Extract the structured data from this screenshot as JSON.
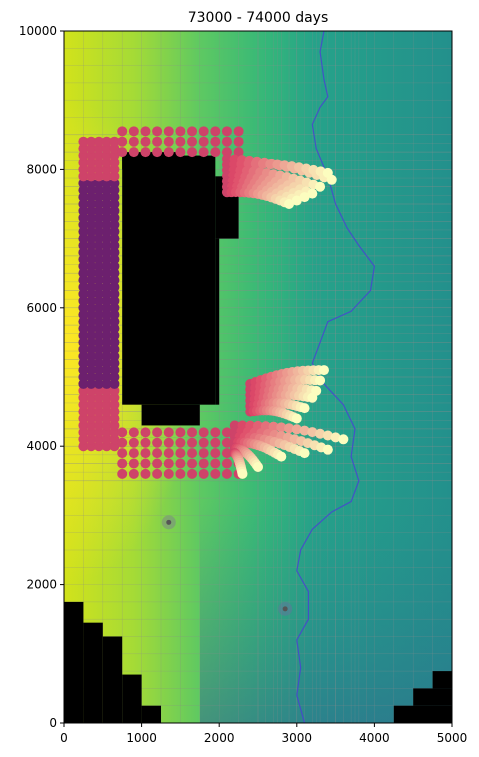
{
  "chart_data": {
    "type": "heatmap",
    "title": "73000 - 74000 days",
    "xlabel": "",
    "ylabel": "",
    "xlim": [
      0,
      5000
    ],
    "ylim": [
      0,
      10000
    ],
    "xticks": [
      0,
      1000,
      2000,
      3000,
      4000,
      5000
    ],
    "yticks": [
      0,
      2000,
      4000,
      6000,
      8000,
      10000
    ],
    "xtick_labels": [
      "0",
      "1000",
      "2000",
      "3000",
      "4000",
      "5000"
    ],
    "ytick_labels": [
      "0",
      "2000",
      "4000",
      "6000",
      "8000",
      "10000"
    ],
    "grid": true,
    "legend": "none",
    "colors": {
      "field_high": "#f1e51d",
      "field_mid": "#5ec962",
      "field_low": "#21918c",
      "field_lowest": "#3b528b",
      "inactive": "#000000",
      "grid_line": "#8c8c8c",
      "river": "#4a3fd6",
      "path_early": "#3b0f70",
      "path_mid": "#de4968",
      "path_late": "#fcfdbf"
    },
    "inactive_cells": [
      [
        750,
        4600,
        1950,
        8200
      ],
      [
        1000,
        4300,
        1750,
        4600
      ],
      [
        1950,
        4600,
        2000,
        7000
      ],
      [
        1950,
        7000,
        2250,
        7900
      ],
      [
        750,
        8000,
        1500,
        8250
      ],
      [
        0,
        0,
        250,
        1750
      ],
      [
        250,
        0,
        500,
        1450
      ],
      [
        500,
        0,
        750,
        1250
      ],
      [
        750,
        0,
        1000,
        700
      ],
      [
        1000,
        0,
        1250,
        250
      ],
      [
        4250,
        0,
        5000,
        250
      ],
      [
        4500,
        250,
        5000,
        500
      ],
      [
        4750,
        500,
        5000,
        750
      ]
    ],
    "river": [
      [
        3350,
        10000
      ],
      [
        3300,
        9700
      ],
      [
        3350,
        9300
      ],
      [
        3400,
        9050
      ],
      [
        3300,
        8900
      ],
      [
        3200,
        8650
      ],
      [
        3250,
        8300
      ],
      [
        3400,
        7900
      ],
      [
        3500,
        7500
      ],
      [
        3650,
        7150
      ],
      [
        3800,
        6900
      ],
      [
        4000,
        6600
      ],
      [
        3950,
        6250
      ],
      [
        3700,
        5950
      ],
      [
        3400,
        5800
      ],
      [
        3300,
        5500
      ],
      [
        3200,
        5200
      ],
      [
        3350,
        4900
      ],
      [
        3600,
        4600
      ],
      [
        3750,
        4250
      ],
      [
        3700,
        3850
      ],
      [
        3800,
        3500
      ],
      [
        3700,
        3200
      ],
      [
        3450,
        3050
      ],
      [
        3200,
        2800
      ],
      [
        3050,
        2500
      ],
      [
        3000,
        2200
      ],
      [
        3150,
        1900
      ],
      [
        3150,
        1500
      ],
      [
        3000,
        1200
      ],
      [
        3050,
        800
      ],
      [
        3000,
        400
      ],
      [
        3100,
        0
      ]
    ],
    "wells": [
      [
        1350,
        2900
      ],
      [
        2850,
        1650
      ]
    ],
    "pathline_groups": [
      {
        "name": "top-arm",
        "start": [
          200,
          8150
        ],
        "ends": [
          [
            3450,
            7850
          ],
          [
            3400,
            7950
          ],
          [
            3300,
            7750
          ],
          [
            3200,
            7650
          ],
          [
            3100,
            7600
          ],
          [
            3000,
            7550
          ],
          [
            2900,
            7500
          ]
        ]
      },
      {
        "name": "lower-upper-arm",
        "start": [
          500,
          4900
        ],
        "ends": [
          [
            3350,
            5100
          ],
          [
            3300,
            4950
          ],
          [
            3250,
            4800
          ],
          [
            3200,
            4700
          ],
          [
            3100,
            4550
          ],
          [
            3000,
            4400
          ]
        ]
      },
      {
        "name": "lower-lower-arm",
        "start": [
          300,
          4300
        ],
        "ends": [
          [
            3600,
            4100
          ],
          [
            3400,
            3950
          ],
          [
            3100,
            3900
          ],
          [
            2800,
            3850
          ],
          [
            2500,
            3700
          ],
          [
            2300,
            3600
          ]
        ]
      }
    ]
  }
}
